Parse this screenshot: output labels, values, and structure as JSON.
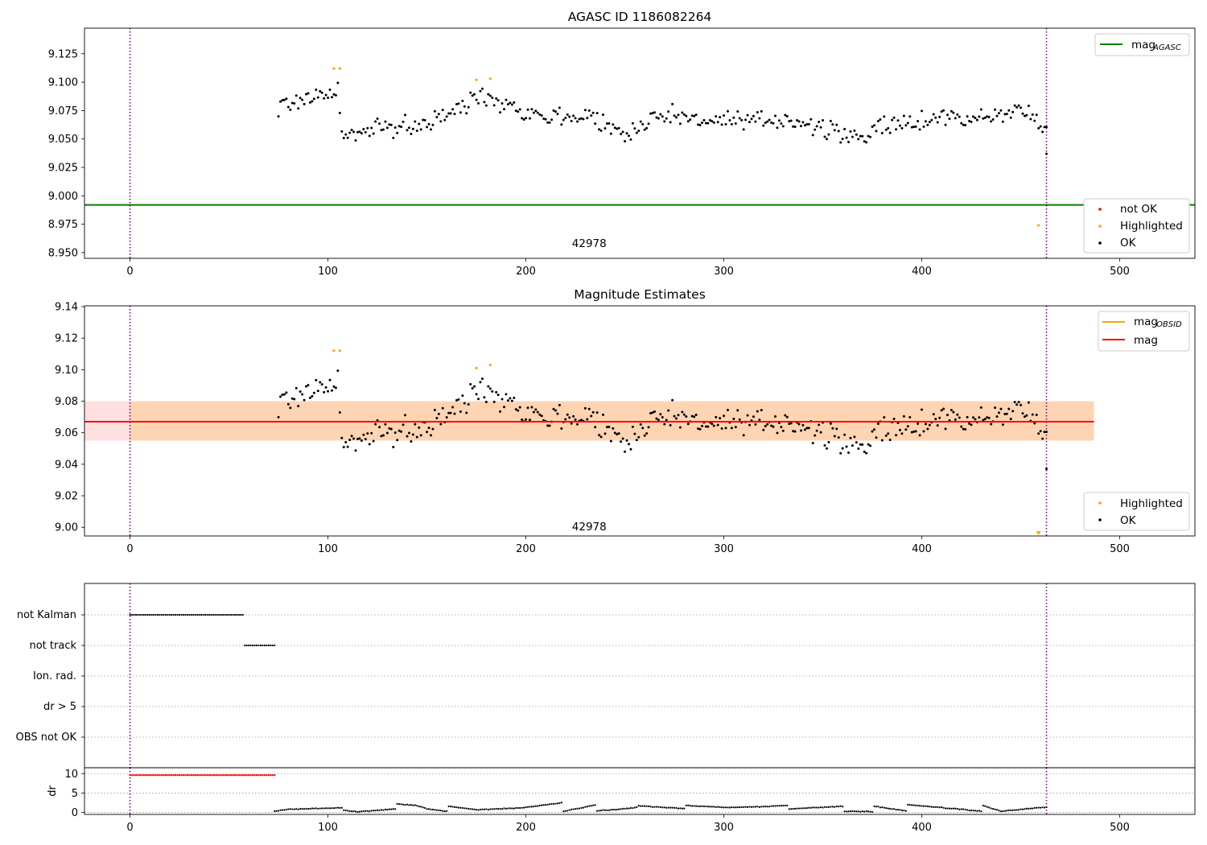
{
  "chart_data": [
    {
      "type": "scatter",
      "title": "AGASC ID 1186082264",
      "xlim": [
        -23,
        538
      ],
      "ylim": [
        8.945,
        9.1475
      ],
      "x_ticks": [
        0,
        100,
        200,
        300,
        400,
        500
      ],
      "y_ticks": [
        8.95,
        8.975,
        9.0,
        9.025,
        9.05,
        9.075,
        9.1,
        9.125
      ],
      "y_tick_labels": [
        "8.950",
        "8.975",
        "9.000",
        "9.025",
        "9.050",
        "9.075",
        "9.100",
        "9.125"
      ],
      "vlines": [
        0,
        463
      ],
      "hline_mag_agasc": 8.992,
      "annotation": {
        "text": "42978",
        "x": 232,
        "y": 8.955
      },
      "legend_lines": [
        {
          "label": "mag",
          "sub": "AGASC",
          "color": "#008000"
        }
      ],
      "legend_points": [
        {
          "label": "not OK",
          "color": "#ff0000"
        },
        {
          "label": "Highlighted",
          "color": "#ffa500"
        },
        {
          "label": "OK",
          "color": "#000000"
        }
      ],
      "series_meta": {
        "ok_x_range": [
          75,
          463
        ],
        "ok_segments": [
          [
            75,
            9.078
          ],
          [
            90,
            9.087
          ],
          [
            105,
            9.09
          ],
          [
            108,
            9.052
          ],
          [
            130,
            9.06
          ],
          [
            150,
            9.063
          ],
          [
            165,
            9.075
          ],
          [
            178,
            9.09
          ],
          [
            195,
            9.078
          ],
          [
            210,
            9.07
          ],
          [
            235,
            9.07
          ],
          [
            250,
            9.052
          ],
          [
            265,
            9.072
          ],
          [
            285,
            9.068
          ],
          [
            310,
            9.064
          ],
          [
            335,
            9.068
          ],
          [
            350,
            9.058
          ],
          [
            365,
            9.052
          ],
          [
            385,
            9.061
          ],
          [
            410,
            9.07
          ],
          [
            430,
            9.068
          ],
          [
            450,
            9.075
          ],
          [
            463,
            9.062
          ]
        ]
      },
      "highlighted_points": [
        [
          103,
          9.112
        ],
        [
          106,
          9.112
        ],
        [
          175,
          9.102
        ],
        [
          182,
          9.103
        ],
        [
          459,
          8.974
        ]
      ],
      "end_point": [
        463,
        9.037
      ]
    },
    {
      "type": "scatter",
      "title": "Magnitude Estimates",
      "xlim": [
        -23,
        538
      ],
      "ylim": [
        8.9945,
        9.1405
      ],
      "x_ticks": [
        0,
        100,
        200,
        300,
        400,
        500
      ],
      "y_ticks": [
        9.0,
        9.02,
        9.04,
        9.06,
        9.08,
        9.1,
        9.12,
        9.14
      ],
      "y_tick_labels": [
        "9.00",
        "9.02",
        "9.04",
        "9.06",
        "9.08",
        "9.10",
        "9.12",
        "9.14"
      ],
      "vlines": [
        0,
        463
      ],
      "mag_line": 9.067,
      "mag_band": [
        9.055,
        9.08
      ],
      "mag_obsid_line": 9.067,
      "mag_obsid_band": [
        9.055,
        9.08
      ],
      "band_x": [
        -23,
        487
      ],
      "obsid_x": [
        0,
        487
      ],
      "annotation": {
        "text": "42978",
        "x": 232,
        "y": 8.998
      },
      "legend_lines": [
        {
          "label": "mag",
          "sub": "OBSID",
          "color": "#ffa500"
        },
        {
          "label": "mag",
          "sub": "",
          "color": "#ff0000"
        }
      ],
      "legend_points": [
        {
          "label": "Highlighted",
          "color": "#ffa500"
        },
        {
          "label": "OK",
          "color": "#000000"
        }
      ],
      "highlighted_points": [
        [
          103,
          9.112
        ],
        [
          106,
          9.112
        ],
        [
          175,
          9.101
        ],
        [
          182,
          9.103
        ]
      ],
      "clipped_marker": [
        459,
        8.996
      ]
    },
    {
      "type": "scatter",
      "title": "",
      "xlim": [
        -23,
        538
      ],
      "categories": [
        "not Kalman",
        "not track",
        "Ion. rad.",
        "dr > 5",
        "OBS not OK"
      ],
      "flag_ranges": [
        {
          "category": "not Kalman",
          "x": [
            0,
            57
          ]
        },
        {
          "category": "not track",
          "x": [
            58,
            73
          ]
        }
      ],
      "vlines": [
        0,
        463
      ]
    },
    {
      "type": "scatter",
      "title": "",
      "ylabel": "dr",
      "xlim": [
        -23,
        538
      ],
      "ylim": [
        -0.5,
        11.5
      ],
      "x_ticks": [
        0,
        100,
        200,
        300,
        400,
        500
      ],
      "y_ticks": [
        0,
        5,
        10
      ],
      "y_tick_labels": [
        "0",
        "5",
        "10"
      ],
      "vlines": [
        0,
        463
      ],
      "red_range": {
        "x": [
          0,
          73
        ],
        "y": 9.6
      },
      "dr_segments": [
        [
          73,
          0.3
        ],
        [
          80,
          0.8
        ],
        [
          100,
          1.1
        ],
        [
          107,
          1.2
        ],
        [
          108,
          0.6
        ],
        [
          115,
          0.2
        ],
        [
          134,
          0.9
        ],
        [
          135,
          2.2
        ],
        [
          145,
          1.8
        ],
        [
          150,
          0.9
        ],
        [
          160,
          0.3
        ],
        [
          161,
          1.6
        ],
        [
          175,
          0.7
        ],
        [
          190,
          1.0
        ],
        [
          200,
          1.3
        ],
        [
          218,
          2.5
        ],
        [
          219,
          0.3
        ],
        [
          235,
          1.9
        ],
        [
          236,
          0.4
        ],
        [
          255,
          1.2
        ],
        [
          257,
          1.7
        ],
        [
          280,
          1.0
        ],
        [
          281,
          1.8
        ],
        [
          300,
          1.3
        ],
        [
          320,
          1.5
        ],
        [
          332,
          1.8
        ],
        [
          333,
          0.9
        ],
        [
          360,
          1.6
        ],
        [
          361,
          0.3
        ],
        [
          375,
          0.2
        ],
        [
          376,
          1.6
        ],
        [
          392,
          0.4
        ],
        [
          393,
          2.0
        ],
        [
          420,
          0.8
        ],
        [
          430,
          0.3
        ],
        [
          431,
          1.8
        ],
        [
          440,
          0.3
        ],
        [
          463,
          1.4
        ]
      ]
    }
  ]
}
